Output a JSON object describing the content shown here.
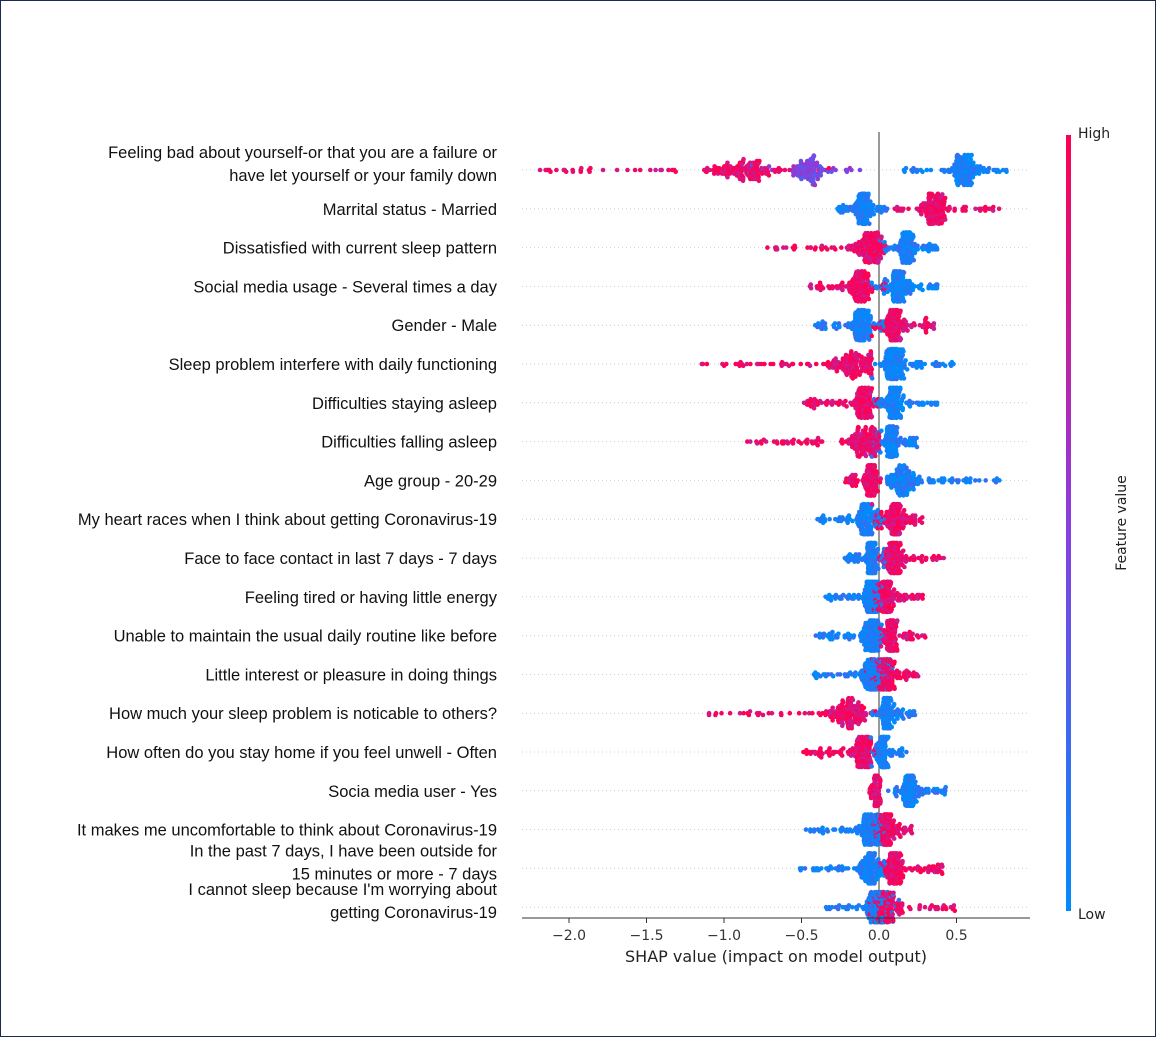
{
  "chart_data": {
    "type": "scatter",
    "subtype": "shap-beeswarm-summary",
    "xlabel": "SHAP value (impact on model output)",
    "xlim": [
      -2.3,
      1.0
    ],
    "x_ticks": [
      -2.0,
      -1.5,
      -1.0,
      -0.5,
      0.0,
      0.5
    ],
    "x_tick_labels": [
      "−2.0",
      "−1.5",
      "−1.0",
      "−0.5",
      "0.0",
      "0.5"
    ],
    "colorbar": {
      "title": "Feature value",
      "high_label": "High",
      "low_label": "Low",
      "high_color": "#ff0052",
      "low_color": "#008bfb"
    },
    "grid": false,
    "features": [
      {
        "label_lines": [
          "Feeling bad about yourself-or that you are a failure or",
          "have  let yourself or your family down"
        ],
        "high": {
          "min": -2.2,
          "max": -0.3,
          "peak": -0.9
        },
        "low": {
          "min": 0.15,
          "max": 0.85,
          "peak": 0.55
        },
        "mid": {
          "min": -0.9,
          "max": -0.05,
          "peak": -0.45
        }
      },
      {
        "label_lines": [
          "Marrital status - Married"
        ],
        "high": {
          "min": 0.1,
          "max": 0.78,
          "peak": 0.35
        },
        "low": {
          "min": -0.28,
          "max": 0.05,
          "peak": -0.1
        }
      },
      {
        "label_lines": [
          "Dissatisfied with current sleep pattern"
        ],
        "high": {
          "min": -0.72,
          "max": 0.05,
          "peak": -0.05
        },
        "low": {
          "min": 0.0,
          "max": 0.38,
          "peak": 0.18
        }
      },
      {
        "label_lines": [
          "Social media usage - Several times a day"
        ],
        "high": {
          "min": -0.45,
          "max": 0.05,
          "peak": -0.12
        },
        "low": {
          "min": -0.05,
          "max": 0.38,
          "peak": 0.12
        }
      },
      {
        "label_lines": [
          "Gender - Male"
        ],
        "high": {
          "min": -0.05,
          "max": 0.38,
          "peak": 0.1
        },
        "low": {
          "min": -0.42,
          "max": 0.05,
          "peak": -0.12
        }
      },
      {
        "label_lines": [
          "Sleep problem interfere with daily functioning"
        ],
        "high": {
          "min": -1.18,
          "max": -0.05,
          "peak": -0.15
        },
        "low": {
          "min": -0.05,
          "max": 0.48,
          "peak": 0.1
        }
      },
      {
        "label_lines": [
          "Difficulties staying  asleep"
        ],
        "high": {
          "min": -0.5,
          "max": 0.0,
          "peak": -0.1
        },
        "low": {
          "min": -0.05,
          "max": 0.38,
          "peak": 0.1
        }
      },
      {
        "label_lines": [
          "Difficulties falling asleep"
        ],
        "high": {
          "min": -0.85,
          "max": 0.0,
          "peak": -0.08
        },
        "low": {
          "min": -0.05,
          "max": 0.25,
          "peak": 0.08
        }
      },
      {
        "label_lines": [
          "Age group - 20-29"
        ],
        "high": {
          "min": -0.22,
          "max": 0.02,
          "peak": -0.05
        },
        "low": {
          "min": 0.05,
          "max": 0.78,
          "peak": 0.15
        }
      },
      {
        "label_lines": [
          "My heart races when I think about getting Coronavirus-19"
        ],
        "high": {
          "min": -0.05,
          "max": 0.3,
          "peak": 0.1
        },
        "low": {
          "min": -0.4,
          "max": 0.05,
          "peak": -0.08
        }
      },
      {
        "label_lines": [
          "Face to face contact in last 7 days - 7 days"
        ],
        "high": {
          "min": 0.0,
          "max": 0.42,
          "peak": 0.1
        },
        "low": {
          "min": -0.22,
          "max": 0.05,
          "peak": -0.05
        }
      },
      {
        "label_lines": [
          "Feeling tired or having little energy"
        ],
        "high": {
          "min": -0.05,
          "max": 0.28,
          "peak": 0.05
        },
        "low": {
          "min": -0.35,
          "max": 0.05,
          "peak": -0.05
        }
      },
      {
        "label_lines": [
          "Unable to maintain the usual daily routine like before"
        ],
        "high": {
          "min": 0.0,
          "max": 0.3,
          "peak": 0.08
        },
        "low": {
          "min": -0.42,
          "max": 0.05,
          "peak": -0.05
        }
      },
      {
        "label_lines": [
          "Little interest or pleasure in doing things"
        ],
        "high": {
          "min": -0.1,
          "max": 0.25,
          "peak": 0.05
        },
        "low": {
          "min": -0.42,
          "max": 0.1,
          "peak": -0.05
        }
      },
      {
        "label_lines": [
          "How much your sleep problem is noticable to others?"
        ],
        "high": {
          "min": -1.12,
          "max": -0.02,
          "peak": -0.2
        },
        "low": {
          "min": -0.05,
          "max": 0.25,
          "peak": 0.05
        }
      },
      {
        "label_lines": [
          "How often do you stay home if you feel unwell - Often"
        ],
        "high": {
          "min": -0.52,
          "max": -0.02,
          "peak": -0.1
        },
        "low": {
          "min": -0.05,
          "max": 0.18,
          "peak": 0.03
        }
      },
      {
        "label_lines": [
          "Socia media user - Yes"
        ],
        "high": {
          "min": -0.06,
          "max": 0.01,
          "peak": -0.02
        },
        "low": {
          "min": 0.05,
          "max": 0.46,
          "peak": 0.2
        }
      },
      {
        "label_lines": [
          "It makes me uncomfortable to think about Coronavirus-19"
        ],
        "high": {
          "min": -0.05,
          "max": 0.22,
          "peak": 0.05
        },
        "low": {
          "min": -0.48,
          "max": 0.05,
          "peak": -0.05
        }
      },
      {
        "label_lines": [
          "In the past 7 days, I have been outside for",
          "15 minutes or more - 7 days"
        ],
        "high": {
          "min": 0.0,
          "max": 0.42,
          "peak": 0.1
        },
        "low": {
          "min": -0.52,
          "max": 0.05,
          "peak": -0.05
        }
      },
      {
        "label_lines": [
          "I cannot sleep because I'm worrying about",
          "getting Coronavirus-19"
        ],
        "high": {
          "min": -0.1,
          "max": 0.58,
          "peak": 0.05
        },
        "low": {
          "min": -0.35,
          "max": 0.15,
          "peak": -0.02
        }
      }
    ]
  }
}
